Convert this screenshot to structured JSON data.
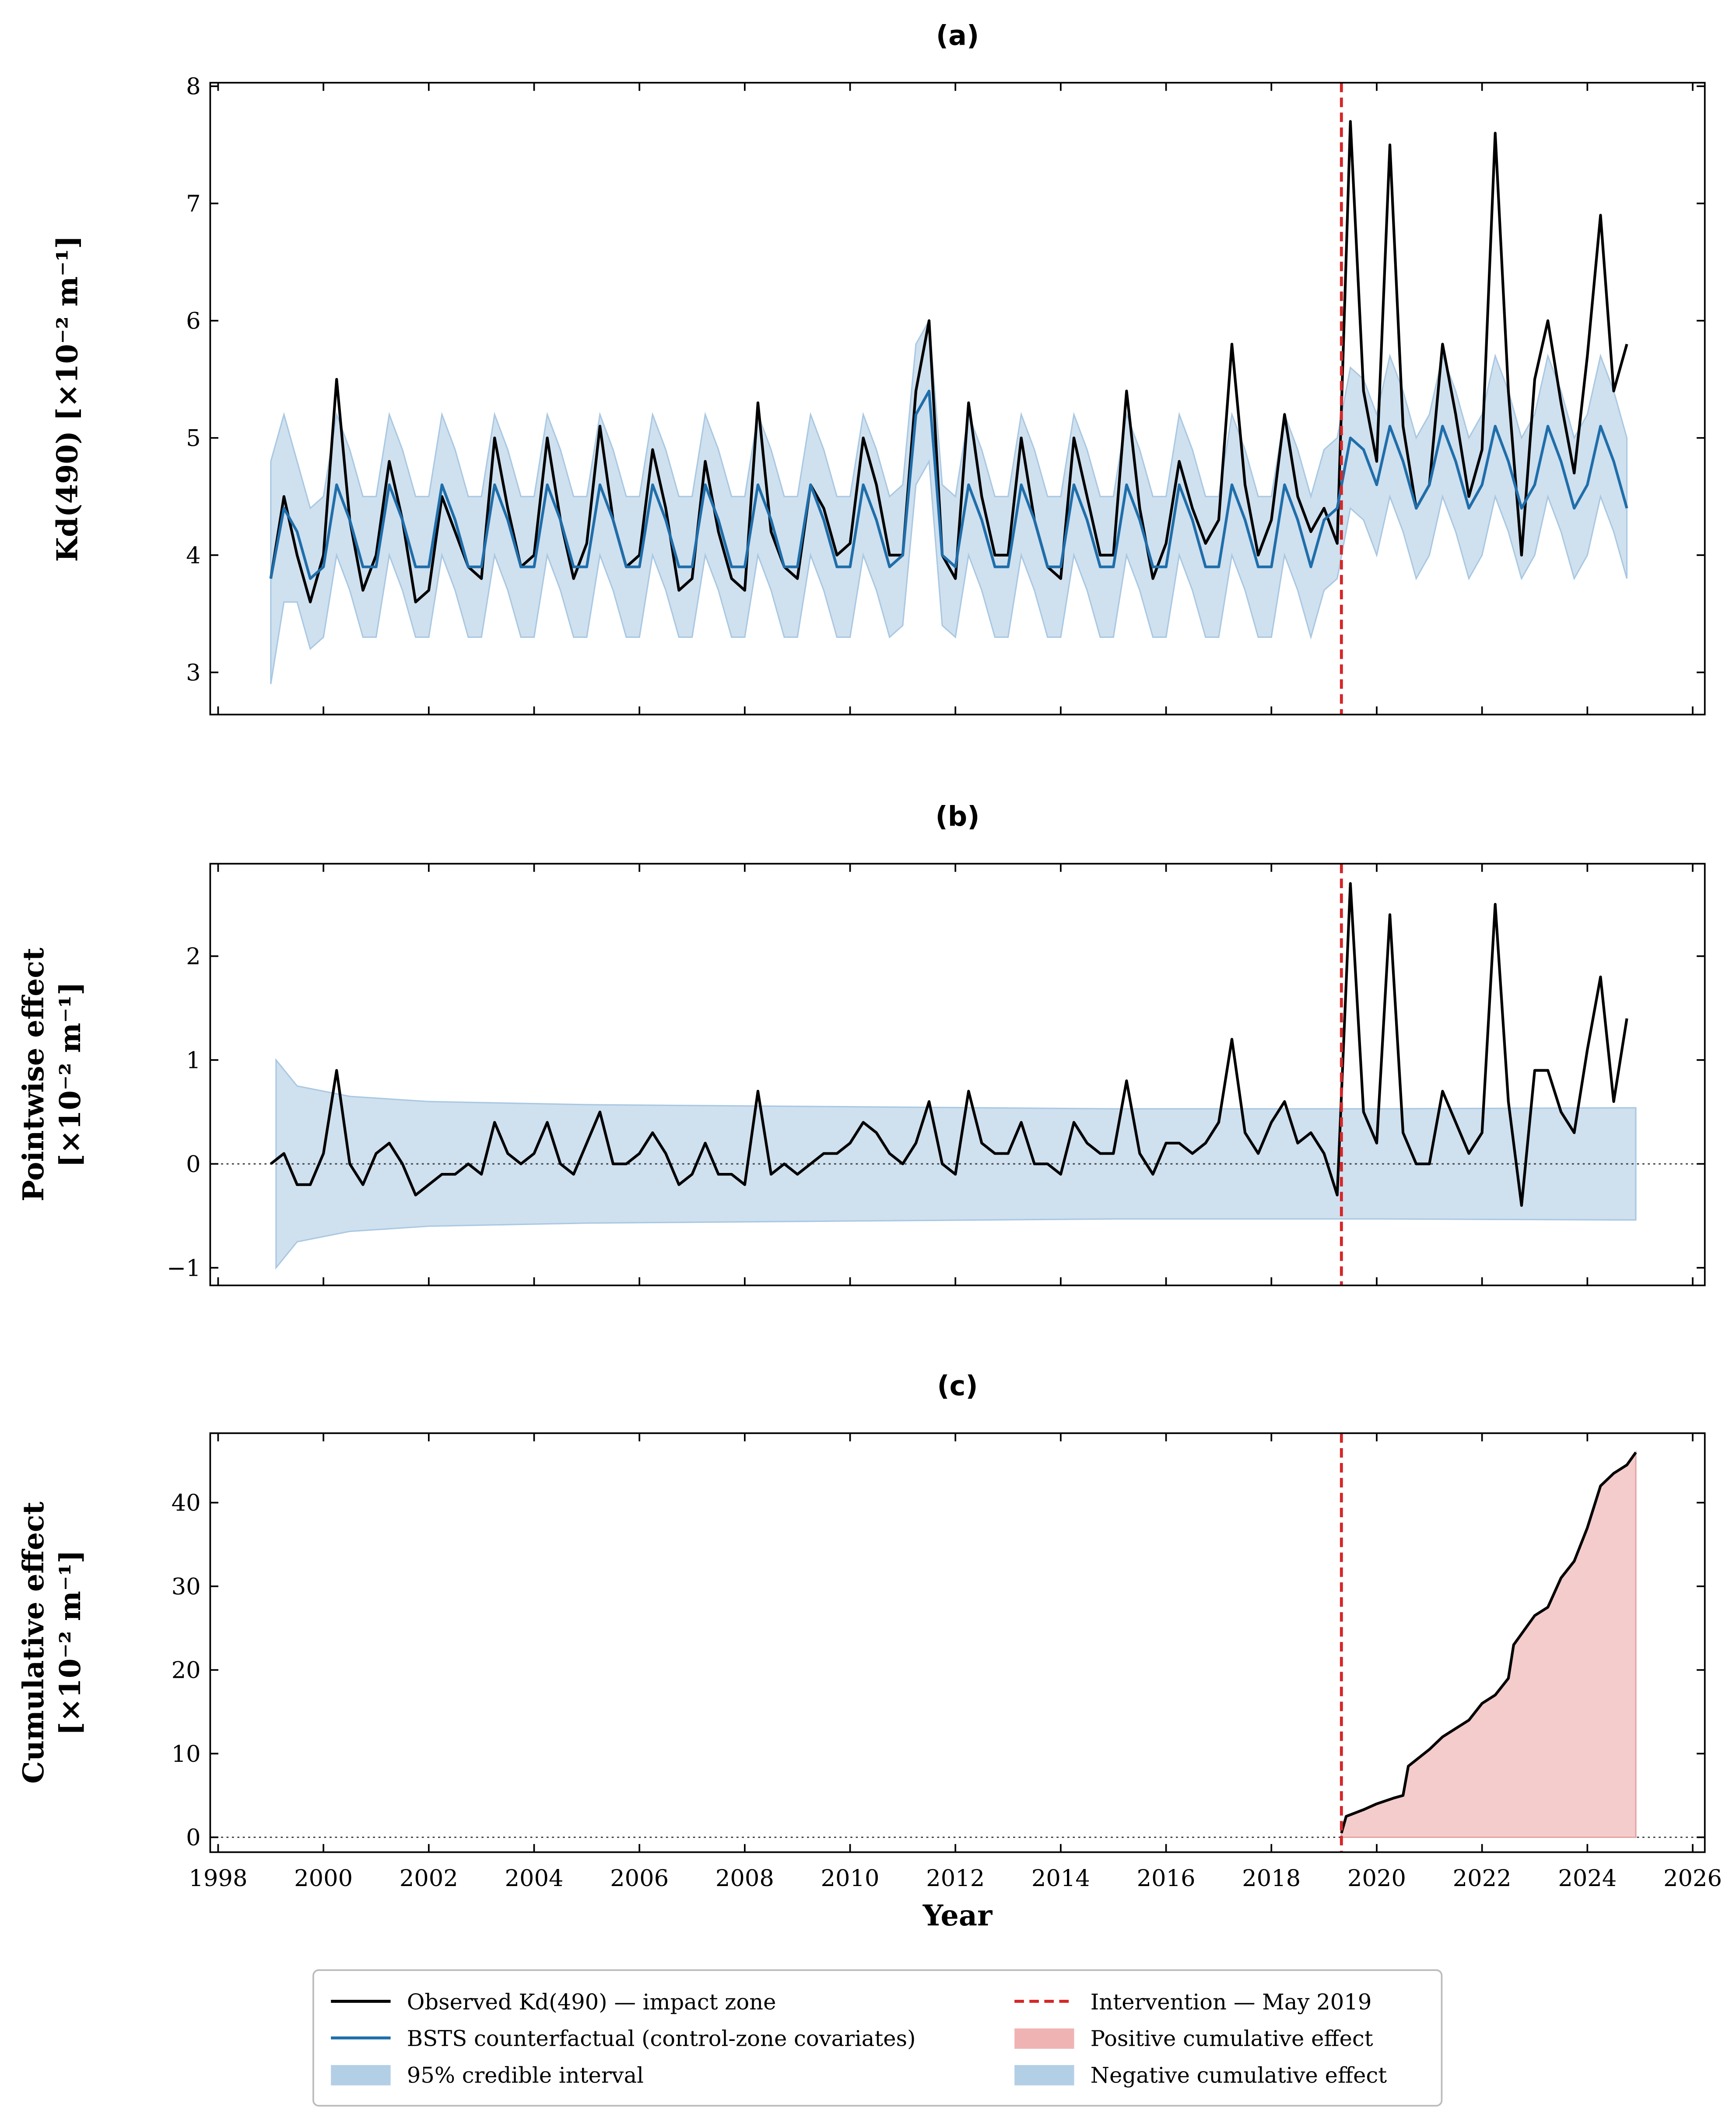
{
  "chart_data": [
    {
      "type": "line",
      "title": "(a)",
      "ylabel": [
        "Kd(490)  [×10⁻² m⁻¹]"
      ],
      "xlim": [
        1997.85,
        2026.23
      ],
      "ylim": [
        2.64,
        8.03
      ],
      "yticks": [
        3,
        4,
        5,
        6,
        7,
        8
      ],
      "xticks": [
        1998,
        2000,
        2002,
        2004,
        2006,
        2008,
        2010,
        2012,
        2014,
        2016,
        2018,
        2020,
        2022,
        2024,
        2026
      ],
      "x": [
        1999,
        1999.25,
        1999.5,
        1999.75,
        2000,
        2000.25,
        2000.5,
        2000.75,
        2001,
        2001.25,
        2001.5,
        2001.75,
        2002,
        2002.25,
        2002.5,
        2002.75,
        2003,
        2003.25,
        2003.5,
        2003.75,
        2004,
        2004.25,
        2004.5,
        2004.75,
        2005,
        2005.25,
        2005.5,
        2005.75,
        2006,
        2006.25,
        2006.5,
        2006.75,
        2007,
        2007.25,
        2007.5,
        2007.75,
        2008,
        2008.25,
        2008.5,
        2008.75,
        2009,
        2009.25,
        2009.5,
        2009.75,
        2010,
        2010.25,
        2010.5,
        2010.75,
        2011,
        2011.25,
        2011.5,
        2011.75,
        2012,
        2012.25,
        2012.5,
        2012.75,
        2013,
        2013.25,
        2013.5,
        2013.75,
        2014,
        2014.25,
        2014.5,
        2014.75,
        2015,
        2015.25,
        2015.5,
        2015.75,
        2016,
        2016.25,
        2016.5,
        2016.75,
        2017,
        2017.25,
        2017.5,
        2017.75,
        2018,
        2018.25,
        2018.5,
        2018.75,
        2019,
        2019.25,
        2019.5,
        2019.75,
        2020,
        2020.25,
        2020.5,
        2020.75,
        2021,
        2021.25,
        2021.5,
        2021.75,
        2022,
        2022.25,
        2022.5,
        2022.75,
        2023,
        2023.25,
        2023.5,
        2023.75,
        2024,
        2024.25,
        2024.5,
        2024.75
      ],
      "band": {
        "color": "#cfe0ef",
        "edge": "#a9c8e2",
        "lower": [
          2.9,
          3.6,
          3.6,
          3.2,
          3.3,
          4.0,
          3.7,
          3.3,
          3.3,
          4.0,
          3.7,
          3.3,
          3.3,
          4.0,
          3.7,
          3.3,
          3.3,
          4.0,
          3.7,
          3.3,
          3.3,
          4.0,
          3.7,
          3.3,
          3.3,
          4.0,
          3.7,
          3.3,
          3.3,
          4.0,
          3.7,
          3.3,
          3.3,
          4.0,
          3.7,
          3.3,
          3.3,
          4.0,
          3.7,
          3.3,
          3.3,
          4.0,
          3.7,
          3.3,
          3.3,
          4.0,
          3.7,
          3.3,
          3.4,
          4.6,
          4.8,
          3.4,
          3.3,
          4.0,
          3.7,
          3.3,
          3.3,
          4.0,
          3.7,
          3.3,
          3.3,
          4.0,
          3.7,
          3.3,
          3.3,
          4.0,
          3.7,
          3.3,
          3.3,
          4.0,
          3.7,
          3.3,
          3.3,
          4.0,
          3.7,
          3.3,
          3.3,
          4.0,
          3.7,
          3.3,
          3.7,
          3.8,
          4.4,
          4.3,
          4.0,
          4.5,
          4.2,
          3.8,
          4.0,
          4.5,
          4.2,
          3.8,
          4.0,
          4.5,
          4.2,
          3.8,
          4.0,
          4.5,
          4.2,
          3.8,
          4.0,
          4.5,
          4.2,
          3.8
        ],
        "upper": [
          4.8,
          5.2,
          4.8,
          4.4,
          4.5,
          5.2,
          4.9,
          4.5,
          4.5,
          5.2,
          4.9,
          4.5,
          4.5,
          5.2,
          4.9,
          4.5,
          4.5,
          5.2,
          4.9,
          4.5,
          4.5,
          5.2,
          4.9,
          4.5,
          4.5,
          5.2,
          4.9,
          4.5,
          4.5,
          5.2,
          4.9,
          4.5,
          4.5,
          5.2,
          4.9,
          4.5,
          4.5,
          5.2,
          4.9,
          4.5,
          4.5,
          5.2,
          4.9,
          4.5,
          4.5,
          5.2,
          4.9,
          4.5,
          4.6,
          5.8,
          6.0,
          4.6,
          4.5,
          5.2,
          4.9,
          4.5,
          4.5,
          5.2,
          4.9,
          4.5,
          4.5,
          5.2,
          4.9,
          4.5,
          4.5,
          5.2,
          4.9,
          4.5,
          4.5,
          5.2,
          4.9,
          4.5,
          4.5,
          5.2,
          4.9,
          4.5,
          4.5,
          5.2,
          4.9,
          4.5,
          4.9,
          5.0,
          5.6,
          5.5,
          5.2,
          5.7,
          5.4,
          5.0,
          5.2,
          5.7,
          5.4,
          5.0,
          5.2,
          5.7,
          5.4,
          5.0,
          5.2,
          5.7,
          5.4,
          5.0,
          5.2,
          5.7,
          5.4,
          5.0
        ]
      },
      "series": [
        {
          "color": "#000000",
          "values": [
            3.8,
            4.5,
            4.0,
            3.6,
            4.0,
            5.5,
            4.3,
            3.7,
            4.0,
            4.8,
            4.3,
            3.6,
            3.7,
            4.5,
            4.2,
            3.9,
            3.8,
            5.0,
            4.4,
            3.9,
            4.0,
            5.0,
            4.3,
            3.8,
            4.1,
            5.1,
            4.3,
            3.9,
            4.0,
            4.9,
            4.4,
            3.7,
            3.8,
            4.8,
            4.2,
            3.8,
            3.7,
            5.3,
            4.2,
            3.9,
            3.8,
            4.6,
            4.4,
            4.0,
            4.1,
            5.0,
            4.6,
            4.0,
            4.0,
            5.4,
            6.0,
            4.0,
            3.8,
            5.3,
            4.5,
            4.0,
            4.0,
            5.0,
            4.3,
            3.9,
            3.8,
            5.0,
            4.5,
            4.0,
            4.0,
            5.4,
            4.4,
            3.8,
            4.1,
            4.8,
            4.4,
            4.1,
            4.3,
            5.8,
            4.6,
            4.0,
            4.3,
            5.2,
            4.5,
            4.2,
            4.4,
            4.1,
            7.7,
            5.4,
            4.8,
            7.5,
            5.1,
            4.4,
            4.6,
            5.8,
            5.2,
            4.5,
            4.9,
            7.6,
            5.4,
            4.0,
            5.5,
            6.0,
            5.3,
            4.7,
            5.7,
            6.9,
            5.4,
            5.8
          ]
        },
        {
          "color": "#1f6eaa",
          "values": [
            3.8,
            4.4,
            4.2,
            3.8,
            3.9,
            4.6,
            4.3,
            3.9,
            3.9,
            4.6,
            4.3,
            3.9,
            3.9,
            4.6,
            4.3,
            3.9,
            3.9,
            4.6,
            4.3,
            3.9,
            3.9,
            4.6,
            4.3,
            3.9,
            3.9,
            4.6,
            4.3,
            3.9,
            3.9,
            4.6,
            4.3,
            3.9,
            3.9,
            4.6,
            4.3,
            3.9,
            3.9,
            4.6,
            4.3,
            3.9,
            3.9,
            4.6,
            4.3,
            3.9,
            3.9,
            4.6,
            4.3,
            3.9,
            4.0,
            5.2,
            5.4,
            4.0,
            3.9,
            4.6,
            4.3,
            3.9,
            3.9,
            4.6,
            4.3,
            3.9,
            3.9,
            4.6,
            4.3,
            3.9,
            3.9,
            4.6,
            4.3,
            3.9,
            3.9,
            4.6,
            4.3,
            3.9,
            3.9,
            4.6,
            4.3,
            3.9,
            3.9,
            4.6,
            4.3,
            3.9,
            4.3,
            4.4,
            5.0,
            4.9,
            4.6,
            5.1,
            4.8,
            4.4,
            4.6,
            5.1,
            4.8,
            4.4,
            4.6,
            5.1,
            4.8,
            4.4,
            4.6,
            5.1,
            4.8,
            4.4,
            4.6,
            5.1,
            4.8,
            4.4
          ]
        }
      ]
    },
    {
      "type": "line",
      "title": "(b)",
      "ylabel": [
        "Pointwise effect",
        "[×10⁻² m⁻¹]"
      ],
      "xlim": [
        1997.85,
        2026.23
      ],
      "ylim": [
        -1.17,
        2.89
      ],
      "yticks": [
        {
          "value": -1,
          "label": "−1"
        },
        0,
        1,
        2
      ],
      "xticks": [
        1998,
        2000,
        2002,
        2004,
        2006,
        2008,
        2010,
        2012,
        2014,
        2016,
        2018,
        2020,
        2022,
        2024,
        2026
      ],
      "zero_line": true,
      "x": [
        1999,
        1999.25,
        1999.5,
        1999.75,
        2000,
        2000.25,
        2000.5,
        2000.75,
        2001,
        2001.25,
        2001.5,
        2001.75,
        2002,
        2002.25,
        2002.5,
        2002.75,
        2003,
        2003.25,
        2003.5,
        2003.75,
        2004,
        2004.25,
        2004.5,
        2004.75,
        2005,
        2005.25,
        2005.5,
        2005.75,
        2006,
        2006.25,
        2006.5,
        2006.75,
        2007,
        2007.25,
        2007.5,
        2007.75,
        2008,
        2008.25,
        2008.5,
        2008.75,
        2009,
        2009.25,
        2009.5,
        2009.75,
        2010,
        2010.25,
        2010.5,
        2010.75,
        2011,
        2011.25,
        2011.5,
        2011.75,
        2012,
        2012.25,
        2012.5,
        2012.75,
        2013,
        2013.25,
        2013.5,
        2013.75,
        2014,
        2014.25,
        2014.5,
        2014.75,
        2015,
        2015.25,
        2015.5,
        2015.75,
        2016,
        2016.25,
        2016.5,
        2016.75,
        2017,
        2017.25,
        2017.5,
        2017.75,
        2018,
        2018.25,
        2018.5,
        2018.75,
        2019,
        2019.25,
        2019.5,
        2019.75,
        2020,
        2020.25,
        2020.5,
        2020.75,
        2021,
        2021.25,
        2021.5,
        2021.75,
        2022,
        2022.25,
        2022.5,
        2022.75,
        2023,
        2023.25,
        2023.5,
        2023.75,
        2024,
        2024.25,
        2024.5,
        2024.75
      ],
      "band": {
        "color": "#cfe0ef",
        "edge": "#a9c8e2",
        "x": [
          1999.1,
          1999.5,
          2000.5,
          2002,
          2005,
          2010,
          2015,
          2020,
          2024.92
        ],
        "lower": [
          -1.0,
          -0.75,
          -0.65,
          -0.6,
          -0.57,
          -0.55,
          -0.53,
          -0.53,
          -0.54
        ],
        "upper": [
          1.0,
          0.75,
          0.65,
          0.6,
          0.57,
          0.55,
          0.53,
          0.53,
          0.54
        ]
      },
      "series": [
        {
          "color": "#000000",
          "values": [
            0.0,
            0.1,
            -0.2,
            -0.2,
            0.1,
            0.9,
            0.0,
            -0.2,
            0.1,
            0.2,
            0.0,
            -0.3,
            -0.2,
            -0.1,
            -0.1,
            0.0,
            -0.1,
            0.4,
            0.1,
            0.0,
            0.1,
            0.4,
            0.0,
            -0.1,
            0.2,
            0.5,
            0.0,
            0.0,
            0.1,
            0.3,
            0.1,
            -0.2,
            -0.1,
            0.2,
            -0.1,
            -0.1,
            -0.2,
            0.7,
            -0.1,
            0.0,
            -0.1,
            0.0,
            0.1,
            0.1,
            0.2,
            0.4,
            0.3,
            0.1,
            0.0,
            0.2,
            0.6,
            0.0,
            -0.1,
            0.7,
            0.2,
            0.1,
            0.1,
            0.4,
            0.0,
            0.0,
            -0.1,
            0.4,
            0.2,
            0.1,
            0.1,
            0.8,
            0.1,
            -0.1,
            0.2,
            0.2,
            0.1,
            0.2,
            0.4,
            1.2,
            0.3,
            0.1,
            0.4,
            0.6,
            0.2,
            0.3,
            0.1,
            -0.3,
            2.7,
            0.5,
            0.2,
            2.4,
            0.3,
            0.0,
            0.0,
            0.7,
            0.4,
            0.1,
            0.3,
            2.5,
            0.6,
            -0.4,
            0.9,
            0.9,
            0.5,
            0.3,
            1.1,
            1.8,
            0.6,
            1.4
          ]
        }
      ]
    },
    {
      "type": "line",
      "title": "(c)",
      "ylabel": [
        "Cumulative effect",
        "[×10⁻² m⁻¹]"
      ],
      "xlabel": "Year",
      "xlim": [
        1997.85,
        2026.23
      ],
      "ylim": [
        -1.78,
        48.3
      ],
      "yticks": [
        0,
        10,
        20,
        30,
        40
      ],
      "xticks": [
        1998,
        2000,
        2002,
        2004,
        2006,
        2008,
        2010,
        2012,
        2014,
        2016,
        2018,
        2020,
        2022,
        2024,
        2026
      ],
      "zero_line": true,
      "x": [
        2019.33,
        2019.42,
        2019.75,
        2020.0,
        2020.33,
        2020.5,
        2020.6,
        2021.0,
        2021.25,
        2021.5,
        2021.75,
        2022.0,
        2022.25,
        2022.5,
        2022.6,
        2023.0,
        2023.25,
        2023.5,
        2023.75,
        2024.0,
        2024.25,
        2024.5,
        2024.75,
        2024.92
      ],
      "series": [
        {
          "color": "#000000",
          "fill": "#f4cccc",
          "edge": "#e3a3a3",
          "values": [
            0.5,
            2.5,
            3.3,
            4.0,
            4.7,
            5.0,
            8.5,
            10.5,
            12,
            13,
            14,
            16,
            17,
            19,
            23,
            26.5,
            27.5,
            31,
            33,
            37,
            42,
            43.5,
            44.5,
            46
          ]
        }
      ]
    }
  ],
  "intervention": {
    "x": 2019.33,
    "color": "#d62728"
  },
  "legend": [
    {
      "label": "Observed Kd(490) — impact zone",
      "kind": "line",
      "color": "#000000"
    },
    {
      "label": "BSTS counterfactual (control-zone covariates)",
      "kind": "line",
      "color": "#1f6eaa"
    },
    {
      "label": "95% credible interval",
      "kind": "patch",
      "color": "#b3cfe6"
    },
    {
      "label": "Intervention — May 2019",
      "kind": "dashed",
      "color": "#d62728"
    },
    {
      "label": "Positive cumulative effect",
      "kind": "patch",
      "color": "#f0b3b3"
    },
    {
      "label": "Negative cumulative effect",
      "kind": "patch",
      "color": "#b3cfe6"
    }
  ]
}
